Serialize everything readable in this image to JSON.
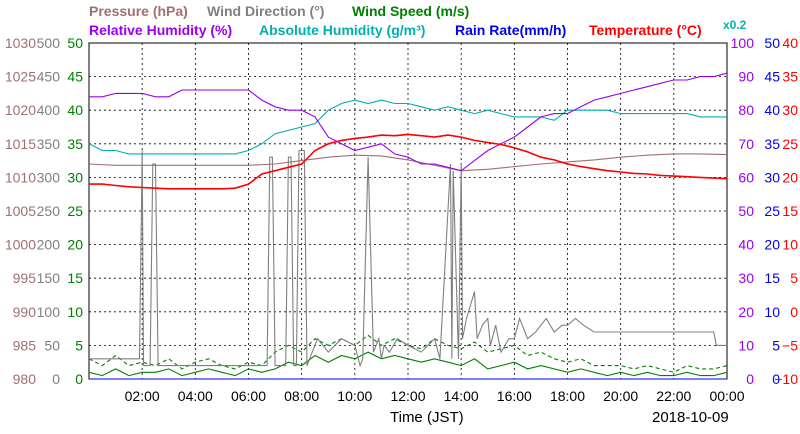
{
  "chart_data": {
    "type": "line",
    "date": "2018-10-09",
    "xlabel": "Time (JST)",
    "x_range_hours": [
      0,
      24
    ],
    "x_ticks": [
      "02:00",
      "04:00",
      "06:00",
      "08:00",
      "10:00",
      "12:00",
      "14:00",
      "16:00",
      "18:00",
      "20:00",
      "22:00",
      "00:00"
    ],
    "grid": true,
    "legend": {
      "row1": [
        {
          "id": "pressure",
          "text": "Pressure (hPa)",
          "color": "#a07070"
        },
        {
          "id": "wdir",
          "text": "Wind Direction (°)",
          "color": "#808080"
        },
        {
          "id": "wspd",
          "text": "Wind Speed (m/s)",
          "color": "#008000"
        }
      ],
      "row2": [
        {
          "id": "rh",
          "text": "Relative Humidity (%)",
          "color": "#9900ee"
        },
        {
          "id": "ah",
          "text": "Absolute Humidity (g/m³)",
          "color": "#00b0b0"
        },
        {
          "id": "rain",
          "text": "Rain Rate(mm/h)",
          "color": "#0000ee"
        },
        {
          "id": "temp",
          "text": "Temperature (°C)",
          "color": "#ff0000"
        },
        {
          "id": "ahscale",
          "text": "x0.2",
          "color": "#00b0b0"
        }
      ]
    },
    "axes": {
      "pressure": {
        "ticks": [
          "1030",
          "1025",
          "1020",
          "1015",
          "1010",
          "1005",
          "1000",
          "995",
          "990",
          "985",
          "980"
        ],
        "range": [
          980,
          1030
        ],
        "color": "#a07070"
      },
      "wdir": {
        "ticks": [
          "500",
          "450",
          "400",
          "350",
          "300",
          "250",
          "200",
          "150",
          "100",
          "50",
          "0"
        ],
        "range": [
          0,
          500
        ],
        "color": "#808080"
      },
      "wspd": {
        "ticks": [
          "50",
          "45",
          "40",
          "35",
          "30",
          "25",
          "20",
          "15",
          "10",
          "5",
          "0"
        ],
        "range": [
          0,
          50
        ],
        "color": "#008000"
      },
      "rh": {
        "ticks": [
          "100",
          "90",
          "80",
          "70",
          "60",
          "50",
          "40",
          "30",
          "20",
          "10",
          "0"
        ],
        "range": [
          0,
          100
        ],
        "color": "#9900ee"
      },
      "rain": {
        "ticks": [
          "50",
          "45",
          "40",
          "35",
          "30",
          "25",
          "20",
          "15",
          "10",
          "5",
          "0"
        ],
        "range": [
          0,
          50
        ],
        "color": "#0000ee"
      },
      "temp": {
        "ticks": [
          "40",
          "35",
          "30",
          "25",
          "20",
          "15",
          "10",
          "5",
          "0",
          "−5",
          "−10"
        ],
        "range": [
          -10,
          40
        ],
        "color": "#ff0000"
      }
    },
    "series": [
      {
        "id": "pressure",
        "name": "Pressure (hPa)",
        "color": "#a07070",
        "axis": "pressure",
        "x": [
          0,
          1,
          2,
          3,
          4,
          5,
          6,
          7,
          8,
          9,
          10,
          11,
          12,
          13,
          14,
          15,
          16,
          17,
          18,
          19,
          20,
          21,
          22,
          23,
          24
        ],
        "y": [
          1012,
          1011.8,
          1011.8,
          1011.8,
          1011.8,
          1011.8,
          1011.8,
          1012,
          1012.5,
          1013,
          1013.3,
          1013.2,
          1012.6,
          1011.8,
          1011,
          1011.2,
          1011.6,
          1012,
          1012.3,
          1012.6,
          1013,
          1013.3,
          1013.5,
          1013.5,
          1013.4
        ]
      },
      {
        "id": "rh",
        "name": "Relative Humidity (%)",
        "color": "#9900ee",
        "axis": "rh",
        "x": [
          0,
          0.5,
          1,
          1.5,
          2,
          2.5,
          3,
          3.5,
          4,
          4.5,
          5,
          5.5,
          6,
          6.5,
          7,
          7.5,
          8,
          8.5,
          9,
          9.5,
          10,
          10.5,
          11,
          11.5,
          12,
          12.5,
          13,
          13.5,
          14,
          14.5,
          15,
          15.5,
          16,
          16.5,
          17,
          17.5,
          18,
          18.5,
          19,
          19.5,
          20,
          20.5,
          21,
          21.5,
          22,
          22.5,
          23,
          23.5,
          24
        ],
        "y": [
          84,
          84,
          85,
          85,
          85,
          84,
          84,
          86,
          86,
          86,
          86,
          86,
          86,
          83,
          81,
          80,
          80,
          78,
          72,
          70,
          68,
          69,
          70,
          67,
          66,
          64,
          64,
          63,
          62,
          65,
          68,
          70,
          72,
          75,
          78,
          79,
          79,
          81,
          83,
          84,
          85,
          86,
          87,
          88,
          89,
          89,
          90,
          90,
          91
        ]
      },
      {
        "id": "ah",
        "name": "Absolute Humidity (g/m³)",
        "color": "#00b0b0",
        "axis": "rh",
        "x": [
          0,
          0.5,
          1,
          1.5,
          2,
          2.5,
          3,
          3.5,
          4,
          4.5,
          5,
          5.5,
          6,
          6.5,
          7,
          7.5,
          8,
          8.5,
          9,
          9.5,
          10,
          10.5,
          11,
          11.5,
          12,
          12.5,
          13,
          13.5,
          14,
          14.5,
          15,
          15.5,
          16,
          16.5,
          17,
          17.5,
          18,
          18.5,
          19,
          19.5,
          20,
          20.5,
          21,
          21.5,
          22,
          22.5,
          23,
          23.5,
          24
        ],
        "y": [
          70,
          68,
          68,
          67,
          67,
          67,
          67,
          67,
          67,
          67,
          67,
          67,
          68,
          70,
          73,
          74,
          75,
          76,
          80,
          82,
          83,
          82,
          83,
          82,
          82,
          81,
          80,
          81,
          80,
          79,
          80,
          79,
          78,
          78,
          78,
          77,
          80,
          80,
          80,
          80,
          79,
          79,
          79,
          79,
          79,
          79,
          78,
          78,
          78
        ]
      },
      {
        "id": "temp",
        "name": "Temperature (°C)",
        "color": "#ff0000",
        "axis": "temp",
        "x": [
          0,
          0.5,
          1,
          1.5,
          2,
          2.5,
          3,
          3.5,
          4,
          4.5,
          5,
          5.5,
          6,
          6.5,
          7,
          7.5,
          8,
          8.5,
          9,
          9.5,
          10,
          10.5,
          11,
          11.5,
          12,
          12.5,
          13,
          13.5,
          14,
          14.5,
          15,
          15.5,
          16,
          16.5,
          17,
          17.5,
          18,
          18.5,
          19,
          19.5,
          20,
          20.5,
          21,
          21.5,
          22,
          22.5,
          23,
          23.5,
          24
        ],
        "y": [
          19,
          19,
          18.8,
          18.6,
          18.5,
          18.4,
          18.3,
          18.3,
          18.3,
          18.3,
          18.3,
          18.4,
          19,
          20.5,
          21,
          21.5,
          22,
          24,
          25,
          25.5,
          25.8,
          26,
          26.3,
          26.2,
          26.4,
          26.2,
          26,
          26.3,
          26,
          25.5,
          25.2,
          24.9,
          24.4,
          23.8,
          23,
          22.6,
          22,
          21.6,
          21.3,
          21,
          20.8,
          20.6,
          20.5,
          20.3,
          20.2,
          20.1,
          20,
          19.9,
          19.8
        ]
      },
      {
        "id": "wdir",
        "name": "Wind Direction (°)",
        "color": "#808080",
        "axis": "wdir",
        "x": [
          0,
          1.9,
          2.0,
          2.05,
          2.3,
          2.4,
          2.5,
          2.6,
          6.7,
          6.8,
          6.9,
          7.0,
          7.4,
          7.5,
          7.6,
          7.7,
          7.8,
          7.9,
          8.1,
          8.2,
          8.3,
          8.6,
          8.8,
          9.0,
          9.5,
          10.0,
          10.2,
          10.3,
          10.5,
          10.7,
          10.9,
          11.0,
          11.1,
          11.3,
          11.6,
          12.0,
          12.5,
          13.0,
          13.2,
          13.6,
          13.65,
          13.7,
          13.9,
          14.0,
          14.05,
          14.2,
          14.5,
          14.6,
          14.8,
          15.0,
          15.1,
          15.3,
          15.5,
          15.8,
          16.0,
          16.2,
          16.5,
          16.8,
          17.0,
          17.2,
          17.5,
          17.8,
          18.0,
          18.3,
          18.6,
          19.0,
          19.5,
          20,
          21,
          22,
          23,
          23.5,
          23.6,
          24
        ],
        "y": [
          30,
          30,
          340,
          20,
          20,
          320,
          320,
          20,
          20,
          330,
          330,
          20,
          20,
          330,
          330,
          20,
          20,
          340,
          340,
          20,
          30,
          60,
          50,
          40,
          60,
          50,
          20,
          30,
          330,
          40,
          60,
          30,
          50,
          40,
          60,
          50,
          40,
          60,
          30,
          320,
          30,
          310,
          30,
          320,
          60,
          90,
          130,
          60,
          80,
          90,
          50,
          80,
          40,
          60,
          60,
          90,
          60,
          70,
          80,
          90,
          70,
          80,
          80,
          90,
          80,
          70,
          70,
          70,
          70,
          70,
          70,
          70,
          50,
          50
        ]
      },
      {
        "id": "wspd",
        "name": "Wind Speed (m/s)",
        "color": "#008000",
        "axis": "wspd",
        "x": [
          0,
          0.5,
          1,
          1.5,
          2,
          2.5,
          3,
          3.5,
          4,
          4.5,
          5,
          5.5,
          6,
          6.5,
          7,
          7.5,
          8,
          8.5,
          9,
          9.5,
          10,
          10.5,
          11,
          11.5,
          12,
          12.5,
          13,
          13.5,
          14,
          14.5,
          15,
          15.5,
          16,
          16.5,
          17,
          17.5,
          18,
          18.5,
          19,
          19.5,
          20,
          20.5,
          21,
          21.5,
          22,
          22.5,
          23,
          23.5,
          24
        ],
        "y": [
          1,
          0.5,
          1.5,
          0.5,
          1,
          1,
          1.5,
          0.5,
          1,
          1.5,
          1,
          0.5,
          1.5,
          1,
          1.5,
          2.5,
          2,
          3.5,
          2.5,
          3.5,
          3,
          4,
          3,
          3.5,
          3,
          2.5,
          3,
          2.5,
          2,
          3,
          1.5,
          2,
          2.5,
          1.5,
          2,
          1.5,
          1,
          1.5,
          1,
          0.5,
          1,
          0.5,
          1,
          0.5,
          0.5,
          1,
          0.5,
          0.5,
          1
        ]
      },
      {
        "id": "wgust",
        "color": "#008000",
        "axis": "wspd",
        "dashed": true,
        "x": [
          0,
          0.5,
          1,
          1.5,
          2,
          2.5,
          3,
          3.5,
          4,
          4.5,
          5,
          5.5,
          6,
          6.5,
          7,
          7.5,
          8,
          8.5,
          9,
          9.5,
          10,
          10.5,
          11,
          11.5,
          12,
          12.5,
          13,
          13.5,
          14,
          14.5,
          15,
          15.5,
          16,
          16.5,
          17,
          17.5,
          18,
          18.5,
          19,
          19.5,
          20,
          20.5,
          21,
          21.5,
          22,
          22.5,
          23,
          23.5,
          24
        ],
        "y": [
          3,
          2,
          3.5,
          2,
          2.5,
          2,
          3,
          1.5,
          2.5,
          3,
          2,
          1.5,
          2.5,
          2,
          4,
          5,
          4,
          6,
          5,
          6,
          5,
          6.5,
          5,
          6,
          5,
          4.5,
          6,
          5,
          4.5,
          5.5,
          4,
          4.5,
          5,
          3.5,
          4,
          3,
          2.5,
          3,
          2,
          2,
          2,
          1.5,
          2,
          1.5,
          1,
          2,
          1.5,
          1.5,
          2
        ]
      },
      {
        "id": "rain",
        "name": "Rain Rate(mm/h)",
        "color": "#0000ee",
        "axis": "rain",
        "x": [
          0,
          24
        ],
        "y": [
          0,
          0
        ]
      }
    ]
  }
}
